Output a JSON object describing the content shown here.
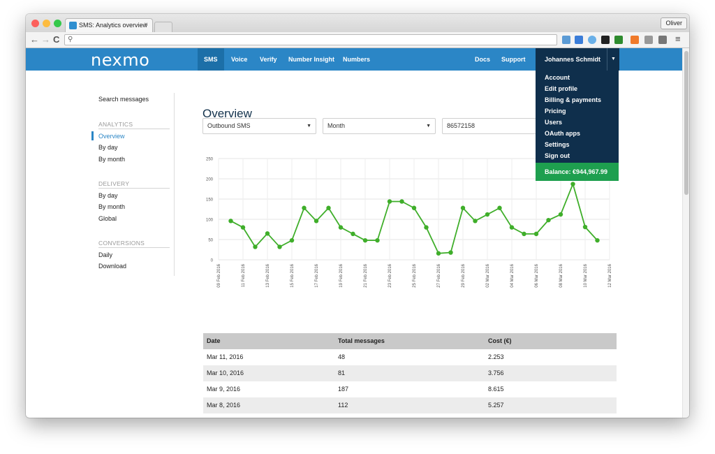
{
  "browser": {
    "tab_title": "SMS: Analytics overview",
    "tab_close": "×",
    "profile": "Oliver",
    "address": ""
  },
  "nav": {
    "logo": "nexmo",
    "items": [
      "SMS",
      "Voice",
      "Verify",
      "Number Insight",
      "Numbers"
    ],
    "active": "SMS",
    "right_items": [
      "Docs",
      "Support"
    ],
    "user": "Johannes Schmidt"
  },
  "dropdown": {
    "items": [
      "Account",
      "Edit profile",
      "Billing & payments",
      "Pricing",
      "Users",
      "OAuth apps",
      "Settings",
      "Sign out"
    ],
    "balance": "Balance: €944,967.99"
  },
  "sidebar": {
    "search": "Search messages",
    "analytics_heading": "ANALYTICS",
    "analytics_items": [
      "Overview",
      "By day",
      "By month"
    ],
    "delivery_heading": "DELIVERY",
    "delivery_items": [
      "By day",
      "By month",
      "Global"
    ],
    "conversions_heading": "CONVERSIONS",
    "conversions_items": [
      "Daily",
      "Download"
    ]
  },
  "main": {
    "title": "Overview",
    "filter_type": "Outbound SMS",
    "filter_period": "Month",
    "filter_number": "86572158"
  },
  "chart_data": {
    "type": "line",
    "color": "#3fae2a",
    "ylim": [
      0,
      250
    ],
    "yticks": [
      0,
      50,
      100,
      150,
      200,
      250
    ],
    "xtick_labels": [
      "09 Feb 2016",
      "11 Feb 2016",
      "13 Feb 2016",
      "15 Feb 2016",
      "17 Feb 2016",
      "19 Feb 2016",
      "21 Feb 2016",
      "23 Feb 2016",
      "25 Feb 2016",
      "27 Feb 2016",
      "29 Feb 2016",
      "02 Mar 2016",
      "04 Mar 2016",
      "06 Mar 2016",
      "08 Mar 2016",
      "10 Mar 2016",
      "12 Mar 2016"
    ],
    "x": [
      "2016-02-10",
      "2016-02-11",
      "2016-02-12",
      "2016-02-13",
      "2016-02-14",
      "2016-02-15",
      "2016-02-16",
      "2016-02-17",
      "2016-02-18",
      "2016-02-19",
      "2016-02-20",
      "2016-02-21",
      "2016-02-22",
      "2016-02-23",
      "2016-02-24",
      "2016-02-25",
      "2016-02-26",
      "2016-02-27",
      "2016-02-28",
      "2016-02-29",
      "2016-03-01",
      "2016-03-02",
      "2016-03-03",
      "2016-03-04",
      "2016-03-05",
      "2016-03-06",
      "2016-03-07",
      "2016-03-08",
      "2016-03-09",
      "2016-03-10",
      "2016-03-11"
    ],
    "values": [
      96,
      80,
      32,
      65,
      32,
      48,
      128,
      96,
      128,
      80,
      64,
      48,
      48,
      144,
      144,
      128,
      80,
      16,
      18,
      128,
      96,
      112,
      128,
      80,
      64,
      64,
      98,
      112,
      187,
      81,
      48
    ]
  },
  "table": {
    "headers": [
      "Date",
      "Total messages",
      "Cost (€)"
    ],
    "rows": [
      [
        "Mar 11, 2016",
        "48",
        "2.253"
      ],
      [
        "Mar 10, 2016",
        "81",
        "3.756"
      ],
      [
        "Mar 9, 2016",
        "187",
        "8.615"
      ],
      [
        "Mar 8, 2016",
        "112",
        "5.257"
      ]
    ]
  }
}
